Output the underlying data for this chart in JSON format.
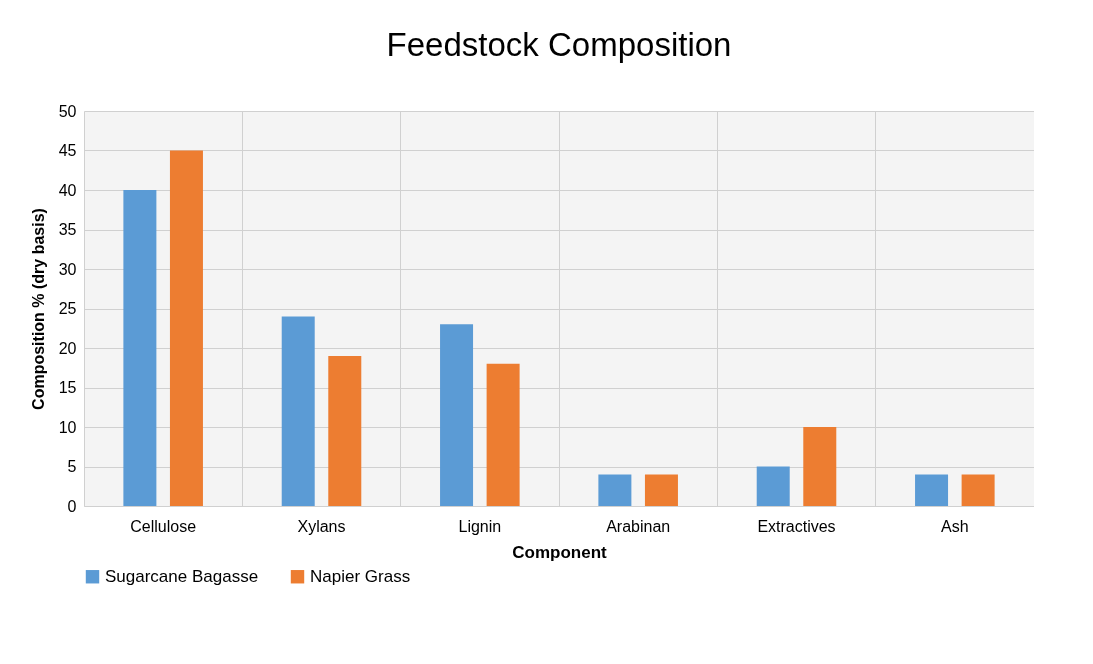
{
  "chart_data": {
    "type": "bar",
    "title": "Feedstock Composition",
    "xlabel": "Component",
    "ylabel": "Composition % (dry basis)",
    "categories": [
      "Cellulose",
      "Xylans",
      "Lignin",
      "Arabinan",
      "Extractives",
      "Ash"
    ],
    "series": [
      {
        "name": "Sugarcane Bagasse",
        "color": "#5b9bd5",
        "values": [
          40,
          24,
          23,
          4,
          5,
          4
        ]
      },
      {
        "name": "Napier Grass",
        "color": "#ed7d31",
        "values": [
          45,
          19,
          18,
          4,
          10,
          4
        ]
      }
    ],
    "ylim": [
      0,
      50
    ],
    "yticks": [
      0,
      5,
      10,
      15,
      20,
      25,
      30,
      35,
      40,
      45,
      50
    ],
    "grid": true,
    "legend": "bottom"
  }
}
